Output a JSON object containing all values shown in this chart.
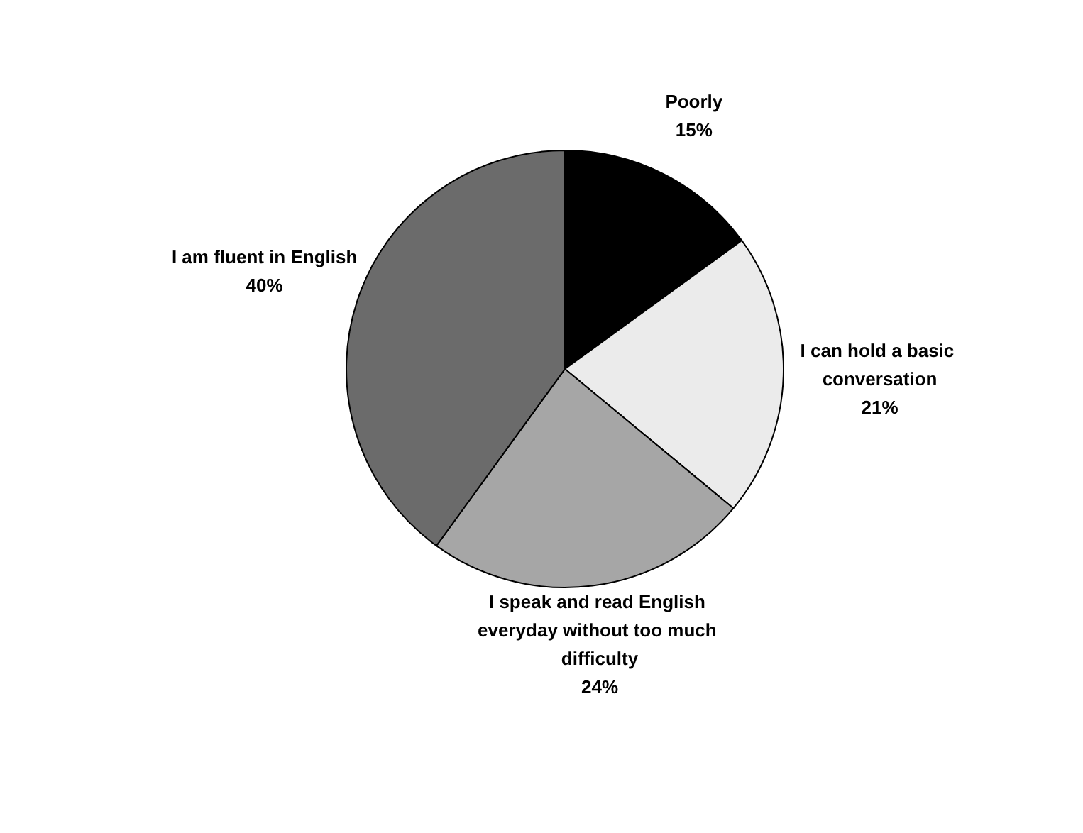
{
  "chart_data": {
    "type": "pie",
    "categories": [
      "Poorly",
      "I can hold a basic conversation",
      "I speak and read English everyday without too much difficulty",
      "I am fluent in English"
    ],
    "values": [
      15,
      21,
      24,
      40
    ],
    "colors": [
      "#000000",
      "#ebebeb",
      "#a6a6a6",
      "#6b6b6b"
    ],
    "value_labels": [
      "15%",
      "21%",
      "24%",
      "40%"
    ],
    "legend": false
  }
}
